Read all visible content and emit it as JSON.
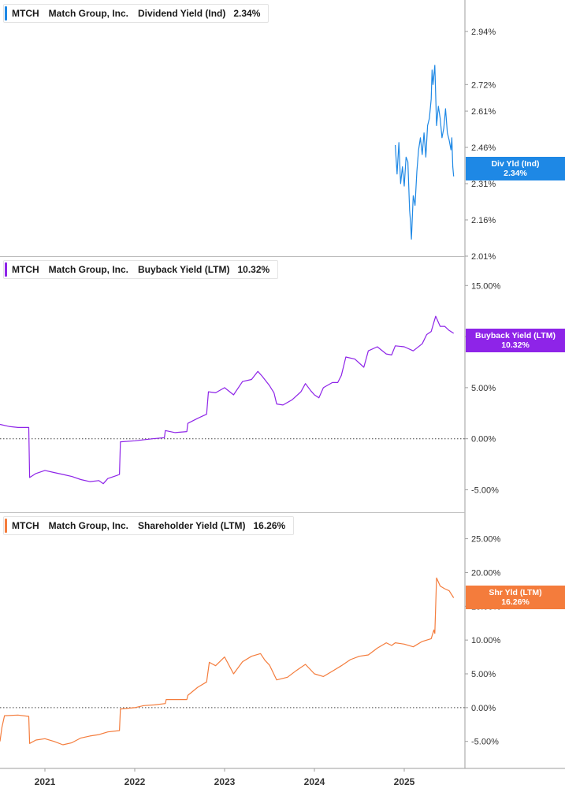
{
  "chart_data": [
    {
      "type": "line",
      "ticker": "MTCH",
      "company": "Match Group, Inc.",
      "metric": "Dividend Yield (Ind)",
      "current_value": "2.34%",
      "tag_label": "Div Yld (Ind)",
      "color": "#1e88e5",
      "y_ticks": [
        "2.94%",
        "2.72%",
        "2.61%",
        "2.46%",
        "2.31%",
        "2.16%",
        "2.01%"
      ],
      "y_tick_values": [
        2.94,
        2.72,
        2.61,
        2.46,
        2.31,
        2.16,
        2.01
      ],
      "ylim": [
        2.01,
        3.07
      ],
      "zero_line": false,
      "series": [
        {
          "values": [
            [
              2024.9,
              2.47
            ],
            [
              2024.92,
              2.35
            ],
            [
              2024.94,
              2.48
            ],
            [
              2024.96,
              2.31
            ],
            [
              2024.98,
              2.38
            ],
            [
              2025.0,
              2.3
            ],
            [
              2025.02,
              2.42
            ],
            [
              2025.04,
              2.4
            ],
            [
              2025.06,
              2.2
            ],
            [
              2025.07,
              2.15
            ],
            [
              2025.08,
              2.08
            ],
            [
              2025.1,
              2.26
            ],
            [
              2025.12,
              2.22
            ],
            [
              2025.14,
              2.36
            ],
            [
              2025.16,
              2.45
            ],
            [
              2025.18,
              2.5
            ],
            [
              2025.2,
              2.43
            ],
            [
              2025.22,
              2.52
            ],
            [
              2025.24,
              2.42
            ],
            [
              2025.26,
              2.55
            ],
            [
              2025.28,
              2.58
            ],
            [
              2025.3,
              2.66
            ],
            [
              2025.31,
              2.78
            ],
            [
              2025.32,
              2.72
            ],
            [
              2025.34,
              2.8
            ],
            [
              2025.36,
              2.55
            ],
            [
              2025.38,
              2.63
            ],
            [
              2025.4,
              2.58
            ],
            [
              2025.42,
              2.5
            ],
            [
              2025.44,
              2.54
            ],
            [
              2025.46,
              2.62
            ],
            [
              2025.48,
              2.52
            ],
            [
              2025.5,
              2.49
            ],
            [
              2025.52,
              2.45
            ],
            [
              2025.53,
              2.5
            ],
            [
              2025.54,
              2.38
            ],
            [
              2025.55,
              2.34
            ]
          ]
        }
      ]
    },
    {
      "type": "line",
      "ticker": "MTCH",
      "company": "Match Group, Inc.",
      "metric": "Buyback Yield (LTM)",
      "current_value": "10.32%",
      "tag_label": "Buyback Yield (LTM)",
      "color": "#8e24e8",
      "y_ticks": [
        "15.00%",
        "10.00%",
        "5.00%",
        "0.00%",
        "-5.00%"
      ],
      "y_tick_values": [
        15,
        10,
        5,
        0,
        -5
      ],
      "ylim": [
        -7.2,
        17.8
      ],
      "zero_line": true,
      "series": [
        {
          "values": [
            [
              2020.5,
              1.4
            ],
            [
              2020.6,
              1.2
            ],
            [
              2020.7,
              1.1
            ],
            [
              2020.82,
              1.1
            ],
            [
              2020.83,
              -3.8
            ],
            [
              2020.9,
              -3.4
            ],
            [
              2021.0,
              -3.1
            ],
            [
              2021.1,
              -3.3
            ],
            [
              2021.2,
              -3.5
            ],
            [
              2021.3,
              -3.7
            ],
            [
              2021.4,
              -4.0
            ],
            [
              2021.5,
              -4.2
            ],
            [
              2021.6,
              -4.1
            ],
            [
              2021.65,
              -4.4
            ],
            [
              2021.7,
              -3.9
            ],
            [
              2021.8,
              -3.6
            ],
            [
              2021.83,
              -3.5
            ],
            [
              2021.84,
              -0.3
            ],
            [
              2022.0,
              -0.2
            ],
            [
              2022.2,
              0.0
            ],
            [
              2022.33,
              0.1
            ],
            [
              2022.34,
              0.8
            ],
            [
              2022.45,
              0.6
            ],
            [
              2022.58,
              0.7
            ],
            [
              2022.59,
              1.5
            ],
            [
              2022.7,
              2.0
            ],
            [
              2022.8,
              2.4
            ],
            [
              2022.82,
              4.6
            ],
            [
              2022.9,
              4.5
            ],
            [
              2023.0,
              5.0
            ],
            [
              2023.1,
              4.3
            ],
            [
              2023.2,
              5.6
            ],
            [
              2023.3,
              5.8
            ],
            [
              2023.37,
              6.6
            ],
            [
              2023.42,
              6.1
            ],
            [
              2023.5,
              5.2
            ],
            [
              2023.55,
              4.5
            ],
            [
              2023.58,
              3.4
            ],
            [
              2023.65,
              3.3
            ],
            [
              2023.75,
              3.8
            ],
            [
              2023.85,
              4.6
            ],
            [
              2023.9,
              5.4
            ],
            [
              2023.96,
              4.7
            ],
            [
              2024.0,
              4.3
            ],
            [
              2024.05,
              4.0
            ],
            [
              2024.1,
              5.0
            ],
            [
              2024.2,
              5.5
            ],
            [
              2024.26,
              5.5
            ],
            [
              2024.3,
              6.2
            ],
            [
              2024.35,
              8.0
            ],
            [
              2024.45,
              7.8
            ],
            [
              2024.55,
              7.0
            ],
            [
              2024.6,
              8.6
            ],
            [
              2024.7,
              9.0
            ],
            [
              2024.8,
              8.3
            ],
            [
              2024.86,
              8.2
            ],
            [
              2024.9,
              9.1
            ],
            [
              2025.0,
              9.0
            ],
            [
              2025.1,
              8.6
            ],
            [
              2025.2,
              9.3
            ],
            [
              2025.25,
              10.2
            ],
            [
              2025.3,
              10.5
            ],
            [
              2025.35,
              12.0
            ],
            [
              2025.4,
              11.0
            ],
            [
              2025.45,
              11.0
            ],
            [
              2025.5,
              10.6
            ],
            [
              2025.55,
              10.32
            ]
          ]
        }
      ]
    },
    {
      "type": "line",
      "ticker": "MTCH",
      "company": "Match Group, Inc.",
      "metric": "Shareholder Yield (LTM)",
      "current_value": "16.26%",
      "tag_label": "Shr Yld (LTM)",
      "color": "#f47c3c",
      "y_ticks": [
        "25.00%",
        "20.00%",
        "15.00%",
        "10.00%",
        "5.00%",
        "0.00%",
        "-5.00%"
      ],
      "y_tick_values": [
        25,
        20,
        15,
        10,
        5,
        0,
        -5
      ],
      "ylim": [
        -9.0,
        28.8
      ],
      "zero_line": true,
      "series": [
        {
          "values": [
            [
              2020.5,
              -5.0
            ],
            [
              2020.52,
              -3.0
            ],
            [
              2020.55,
              -1.2
            ],
            [
              2020.7,
              -1.1
            ],
            [
              2020.82,
              -1.3
            ],
            [
              2020.83,
              -5.3
            ],
            [
              2020.9,
              -4.8
            ],
            [
              2021.0,
              -4.6
            ],
            [
              2021.1,
              -5.0
            ],
            [
              2021.2,
              -5.5
            ],
            [
              2021.3,
              -5.2
            ],
            [
              2021.4,
              -4.5
            ],
            [
              2021.5,
              -4.2
            ],
            [
              2021.6,
              -4.0
            ],
            [
              2021.7,
              -3.6
            ],
            [
              2021.83,
              -3.4
            ],
            [
              2021.84,
              -0.2
            ],
            [
              2022.0,
              0.0
            ],
            [
              2022.1,
              0.3
            ],
            [
              2022.22,
              0.4
            ],
            [
              2022.34,
              0.6
            ],
            [
              2022.35,
              1.2
            ],
            [
              2022.58,
              1.2
            ],
            [
              2022.59,
              1.8
            ],
            [
              2022.7,
              3.0
            ],
            [
              2022.8,
              3.8
            ],
            [
              2022.83,
              6.7
            ],
            [
              2022.9,
              6.2
            ],
            [
              2023.0,
              7.5
            ],
            [
              2023.1,
              5.0
            ],
            [
              2023.2,
              6.8
            ],
            [
              2023.3,
              7.6
            ],
            [
              2023.4,
              8.0
            ],
            [
              2023.45,
              7.0
            ],
            [
              2023.5,
              6.3
            ],
            [
              2023.58,
              4.1
            ],
            [
              2023.7,
              4.5
            ],
            [
              2023.8,
              5.5
            ],
            [
              2023.9,
              6.4
            ],
            [
              2024.0,
              5.0
            ],
            [
              2024.1,
              4.6
            ],
            [
              2024.2,
              5.4
            ],
            [
              2024.3,
              6.2
            ],
            [
              2024.4,
              7.1
            ],
            [
              2024.5,
              7.6
            ],
            [
              2024.6,
              7.8
            ],
            [
              2024.7,
              8.8
            ],
            [
              2024.8,
              9.6
            ],
            [
              2024.86,
              9.2
            ],
            [
              2024.9,
              9.6
            ],
            [
              2025.0,
              9.4
            ],
            [
              2025.1,
              9.0
            ],
            [
              2025.2,
              9.8
            ],
            [
              2025.3,
              10.2
            ],
            [
              2025.33,
              11.5
            ],
            [
              2025.34,
              11.0
            ],
            [
              2025.36,
              19.2
            ],
            [
              2025.4,
              18.0
            ],
            [
              2025.45,
              17.6
            ],
            [
              2025.5,
              17.3
            ],
            [
              2025.55,
              16.26
            ]
          ]
        }
      ]
    }
  ],
  "x_axis": {
    "labels": [
      "2021",
      "2022",
      "2023",
      "2024",
      "2025"
    ],
    "tick_values": [
      2021,
      2022,
      2023,
      2024,
      2025
    ]
  }
}
